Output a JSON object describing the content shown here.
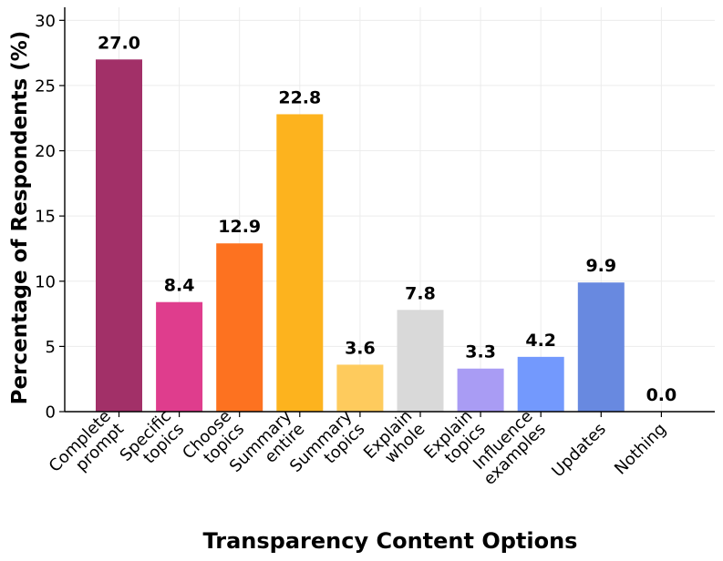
{
  "chart_data": {
    "type": "bar",
    "title": "",
    "xlabel": "Transparency Content Options",
    "ylabel": "Percentage of Respondents (%)",
    "ylim": [
      0,
      31
    ],
    "yticks": [
      0,
      5,
      10,
      15,
      20,
      25,
      30
    ],
    "grid": true,
    "categories": [
      [
        "Complete",
        "prompt"
      ],
      [
        "Specific",
        "topics"
      ],
      [
        "Choose",
        "topics"
      ],
      [
        "Summary",
        "entire"
      ],
      [
        "Summary",
        "topics"
      ],
      [
        "Explain",
        "whole"
      ],
      [
        "Explain",
        "topics"
      ],
      [
        "Influence",
        "examples"
      ],
      [
        "Updates"
      ],
      [
        "Nothing"
      ]
    ],
    "values": [
      27.0,
      8.4,
      12.9,
      22.8,
      3.6,
      7.8,
      3.3,
      4.2,
      9.9,
      0.0
    ],
    "value_labels": [
      "27.0",
      "8.4",
      "12.9",
      "22.8",
      "3.6",
      "7.8",
      "3.3",
      "4.2",
      "9.9",
      "0.0"
    ],
    "colors": [
      "#a23068",
      "#df3d8d",
      "#fd7220",
      "#fdb31e",
      "#fecb5d",
      "#d9d9d9",
      "#a99cf4",
      "#7399fd",
      "#6889e0",
      "#7d6fd6"
    ]
  }
}
